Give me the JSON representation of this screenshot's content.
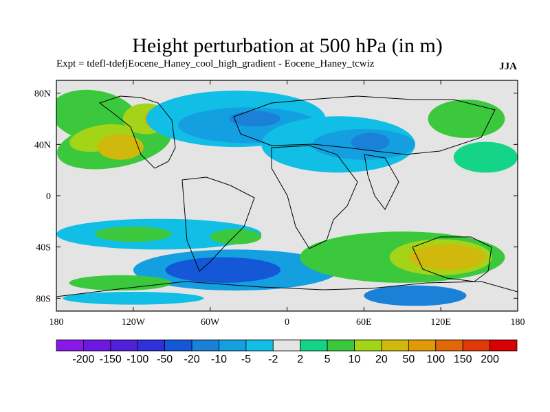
{
  "title": "Height perturbation at 500 hPa (in m)",
  "subtitle": "Expt = tdefl-tdefjEocene_Haney_cool_high_gradient - Eocene_Haney_tcwiz",
  "season": "JJA",
  "chart_data": {
    "type": "heatmap",
    "xaxis": {
      "ticks": [
        -180,
        -120,
        -60,
        0,
        60,
        120,
        180
      ],
      "labels": [
        "180",
        "120W",
        "60W",
        "0",
        "60E",
        "120E",
        "180"
      ],
      "range": [
        -180,
        180
      ]
    },
    "yaxis": {
      "ticks": [
        80,
        40,
        0,
        -40,
        -80
      ],
      "labels": [
        "80N",
        "40N",
        "0",
        "40S",
        "80S"
      ],
      "range": [
        -90,
        90
      ]
    },
    "colorbar": {
      "orientation": "horizontal",
      "levels": [
        "-200",
        "-150",
        "-100",
        "-50",
        "-20",
        "-10",
        "-5",
        "-2",
        "2",
        "5",
        "10",
        "20",
        "50",
        "100",
        "150",
        "200"
      ],
      "colors": [
        "#8a18e8",
        "#6c18e0",
        "#5020d8",
        "#3030d8",
        "#1458d8",
        "#1a80d8",
        "#14a0e0",
        "#10bee6",
        "#e4e4e4",
        "#14d488",
        "#3cc83c",
        "#a4d418",
        "#d0b80c",
        "#e09a08",
        "#e06808",
        "#e03808",
        "#d80000"
      ]
    },
    "fields": [
      {
        "type": "region",
        "lon": -150,
        "lat": 62,
        "rx": 35,
        "ry": 20,
        "rot": 10,
        "color": "#3cc83c"
      },
      {
        "type": "region",
        "lon": -135,
        "lat": 40,
        "rx": 45,
        "ry": 18,
        "rot": -10,
        "color": "#3cc83c"
      },
      {
        "type": "region",
        "lon": -145,
        "lat": 45,
        "rx": 25,
        "ry": 10,
        "rot": -10,
        "color": "#a4d418"
      },
      {
        "type": "region",
        "lon": -110,
        "lat": 60,
        "rx": 18,
        "ry": 12,
        "rot": 0,
        "color": "#a4d418"
      },
      {
        "type": "region",
        "lon": -100,
        "lat": 60,
        "rx": 12,
        "ry": 8,
        "rot": 0,
        "color": "#d0b80c"
      },
      {
        "type": "region",
        "lon": -130,
        "lat": 38,
        "rx": 18,
        "ry": 10,
        "rot": 0,
        "color": "#d0b80c"
      },
      {
        "type": "region",
        "lon": -40,
        "lat": 60,
        "rx": 70,
        "ry": 22,
        "rot": 0,
        "color": "#10bee6"
      },
      {
        "type": "region",
        "lon": -30,
        "lat": 55,
        "rx": 55,
        "ry": 14,
        "rot": 0,
        "color": "#14a0e0"
      },
      {
        "type": "region",
        "lon": -25,
        "lat": 60,
        "rx": 20,
        "ry": 6,
        "rot": 0,
        "color": "#1a80d8"
      },
      {
        "type": "region",
        "lon": 40,
        "lat": 40,
        "rx": 60,
        "ry": 22,
        "rot": 0,
        "color": "#10bee6"
      },
      {
        "type": "region",
        "lon": 60,
        "lat": 40,
        "rx": 40,
        "ry": 12,
        "rot": 0,
        "color": "#14a0e0"
      },
      {
        "type": "region",
        "lon": 65,
        "lat": 42,
        "rx": 15,
        "ry": 7,
        "rot": 0,
        "color": "#1a80d8"
      },
      {
        "type": "region",
        "lon": 140,
        "lat": 60,
        "rx": 30,
        "ry": 15,
        "rot": 0,
        "color": "#3cc83c"
      },
      {
        "type": "region",
        "lon": 155,
        "lat": 30,
        "rx": 25,
        "ry": 12,
        "rot": 0,
        "color": "#14d488"
      },
      {
        "type": "region",
        "lon": -100,
        "lat": -30,
        "rx": 80,
        "ry": 12,
        "rot": 0,
        "color": "#10bee6"
      },
      {
        "type": "region",
        "lon": -120,
        "lat": -30,
        "rx": 30,
        "ry": 6,
        "rot": 0,
        "color": "#3cc83c"
      },
      {
        "type": "region",
        "lon": -40,
        "lat": -32,
        "rx": 20,
        "ry": 6,
        "rot": 0,
        "color": "#3cc83c"
      },
      {
        "type": "region",
        "lon": -40,
        "lat": -58,
        "rx": 80,
        "ry": 16,
        "rot": 0,
        "color": "#14a0e0"
      },
      {
        "type": "region",
        "lon": -50,
        "lat": -58,
        "rx": 45,
        "ry": 10,
        "rot": 0,
        "color": "#1458d8"
      },
      {
        "type": "region",
        "lon": 90,
        "lat": -48,
        "rx": 80,
        "ry": 20,
        "rot": 0,
        "color": "#3cc83c"
      },
      {
        "type": "region",
        "lon": 120,
        "lat": -48,
        "rx": 40,
        "ry": 14,
        "rot": 0,
        "color": "#a4d418"
      },
      {
        "type": "region",
        "lon": 125,
        "lat": -48,
        "rx": 30,
        "ry": 10,
        "rot": 0,
        "color": "#d0b80c"
      },
      {
        "type": "region",
        "lon": 100,
        "lat": -78,
        "rx": 40,
        "ry": 8,
        "rot": 0,
        "color": "#1a80d8"
      },
      {
        "type": "region",
        "lon": -130,
        "lat": -68,
        "rx": 40,
        "ry": 6,
        "rot": 0,
        "color": "#3cc83c"
      },
      {
        "type": "region",
        "lon": -120,
        "lat": -80,
        "rx": 55,
        "ry": 5,
        "rot": 0,
        "color": "#10bee6"
      }
    ]
  }
}
